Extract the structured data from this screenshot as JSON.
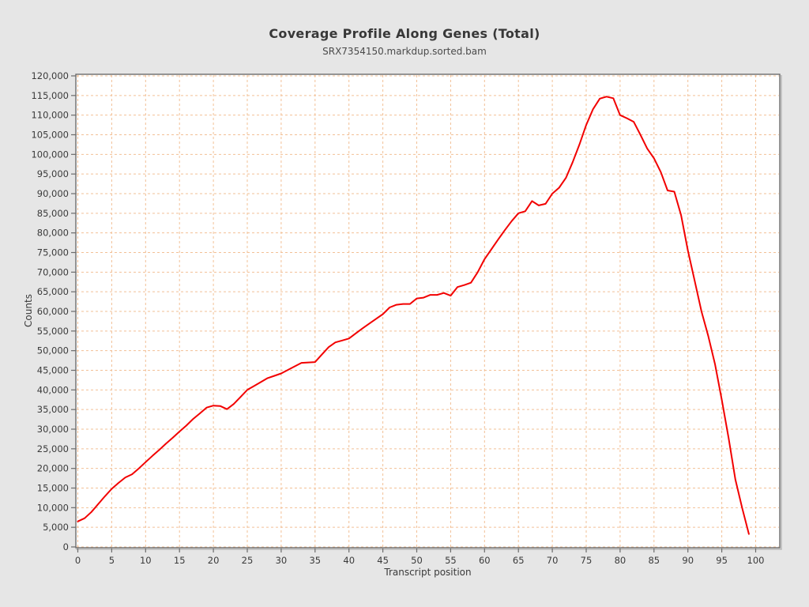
{
  "colors": {
    "background": "#e6e6e6",
    "plot_background": "#ffffff",
    "line": "#f20000",
    "grid": "#f2c096",
    "frame": "#6b6b6b",
    "frame_shadow": "#b9b9b9",
    "text": "#3a3a3a"
  },
  "chart_data": {
    "type": "line",
    "title": "Coverage Profile Along Genes (Total)",
    "subtitle": "SRX7354150.markdup.sorted.bam",
    "xlabel": "Transcript position",
    "ylabel": "Counts",
    "xlim": [
      0,
      103
    ],
    "ylim": [
      0,
      120000
    ],
    "xtick_step": 5,
    "xtick_max": 100,
    "ytick_step": 5000,
    "grid": true,
    "grid_style": "dashed",
    "legend_position": "none",
    "x": {
      "start": 0,
      "end": 99,
      "step": 1
    },
    "series": [
      {
        "name": "SRX7354150.markdup.sorted.bam",
        "y": [
          6500,
          7300,
          8900,
          10900,
          12900,
          14800,
          16300,
          17700,
          18500,
          20000,
          21600,
          23200,
          24700,
          26300,
          27800,
          29400,
          30900,
          32600,
          34000,
          35500,
          36000,
          35900,
          35100,
          36400,
          38200,
          40000,
          41000,
          42000,
          43000,
          43600,
          44200,
          45100,
          46000,
          46900,
          47000,
          47100,
          49000,
          50900,
          52100,
          52600,
          53100,
          54400,
          55700,
          56900,
          58100,
          59300,
          61000,
          61700,
          61900,
          61900,
          63300,
          63500,
          64200,
          64200,
          64700,
          64000,
          66200,
          66700,
          67300,
          70000,
          73300,
          75800,
          78300,
          80700,
          83000,
          85000,
          85500,
          88100,
          87000,
          87400,
          90000,
          91500,
          94000,
          98000,
          102500,
          107500,
          111500,
          114200,
          114700,
          114300,
          110000,
          109200,
          108300,
          105000,
          101500,
          99000,
          95500,
          90800,
          90500,
          84500,
          75500,
          67800,
          60000,
          53800,
          46600,
          37500,
          27800,
          17200,
          10000,
          3300
        ]
      }
    ]
  }
}
